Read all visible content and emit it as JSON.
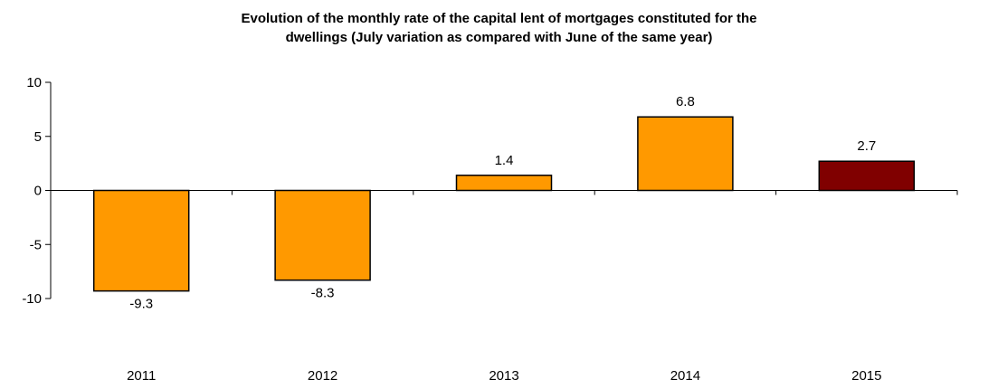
{
  "chart_data": {
    "type": "bar",
    "title_lines": [
      "Evolution of the monthly rate of the capital lent of mortgages constituted for the",
      "dwellings (July variation as compared with June of the same year)"
    ],
    "categories": [
      "2011",
      "2012",
      "2013",
      "2014",
      "2015"
    ],
    "values": [
      -9.3,
      -8.3,
      1.4,
      6.8,
      2.7
    ],
    "data_labels": [
      "-9.3",
      "-8.3",
      "1.4",
      "6.8",
      "2.7"
    ],
    "ylim": [
      -10,
      10
    ],
    "yticks": [
      -10,
      -5,
      0,
      5,
      10
    ],
    "ytick_labels": [
      "-10",
      "-5",
      "0",
      "5",
      "10"
    ],
    "xlabel": "",
    "ylabel": "",
    "grid": false,
    "legend": "none",
    "colors": {
      "default_bar": "#FF9900",
      "highlight_bar": "#800000",
      "bar_stroke": "#000000",
      "axis": "#000000"
    },
    "highlight_index": 4
  }
}
